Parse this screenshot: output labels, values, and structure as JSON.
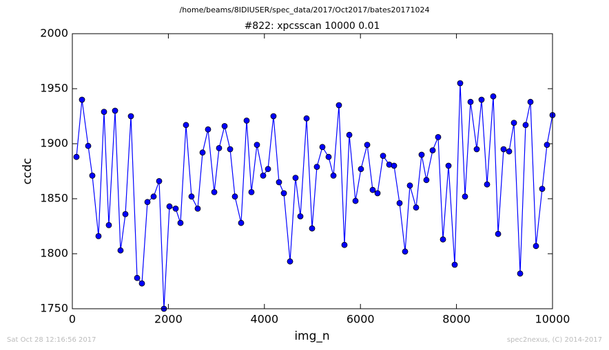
{
  "chart_data": {
    "type": "line",
    "suptitle": "/home/beams/8IDIUSER/spec_data/2017/Oct2017/bates20171024",
    "title": "#822: xpcsscan 10000 0.01",
    "xlabel": "img_n",
    "ylabel": "ccdc",
    "footer_left": "Sat Oct 28 12:16:56 2017",
    "footer_right": "spec2nexus, (C) 2014-2017",
    "xlim": [
      0,
      10000
    ],
    "xticks": [
      0,
      2000,
      4000,
      6000,
      8000,
      10000
    ],
    "ylim": [
      1750,
      2000
    ],
    "yticks": [
      1750,
      1800,
      1850,
      1900,
      1950,
      2000
    ],
    "grid": false,
    "x": [
      86,
      201,
      330,
      416,
      545,
      660,
      760,
      890,
      1004,
      1105,
      1220,
      1349,
      1449,
      1564,
      1693,
      1808,
      1908,
      2023,
      2152,
      2252,
      2367,
      2482,
      2611,
      2712,
      2826,
      2956,
      3056,
      3171,
      3286,
      3386,
      3515,
      3630,
      3730,
      3845,
      3974,
      4075,
      4189,
      4304,
      4405,
      4534,
      4648,
      4749,
      4878,
      4993,
      5093,
      5208,
      5337,
      5438,
      5552,
      5667,
      5768,
      5897,
      6011,
      6141,
      6255,
      6356,
      6471,
      6600,
      6700,
      6815,
      6930,
      7030,
      7159,
      7274,
      7374,
      7504,
      7618,
      7719,
      7834,
      7963,
      8077,
      8178,
      8293,
      8422,
      8522,
      8637,
      8766,
      8867,
      8981,
      9096,
      9197,
      9326,
      9440,
      9541,
      9656,
      9785,
      9885,
      10000
    ],
    "series": [
      {
        "color": "#0000ff",
        "marker_edge": "#000000",
        "values": [
          1888,
          1940,
          1898,
          1871,
          1816,
          1929,
          1826,
          1930,
          1803,
          1836,
          1925,
          1778,
          1773,
          1847,
          1852,
          1866,
          1750,
          1843,
          1841,
          1828,
          1917,
          1852,
          1841,
          1892,
          1913,
          1856,
          1896,
          1916,
          1895,
          1852,
          1828,
          1921,
          1856,
          1899,
          1871,
          1877,
          1925,
          1865,
          1855,
          1793,
          1869,
          1834,
          1923,
          1823,
          1879,
          1897,
          1888,
          1871,
          1935,
          1808,
          1908,
          1848,
          1877,
          1899,
          1858,
          1855,
          1889,
          1881,
          1880,
          1846,
          1802,
          1862,
          1842,
          1890,
          1867,
          1894,
          1906,
          1813,
          1880,
          1790,
          1955,
          1852,
          1938,
          1895,
          1940,
          1863,
          1943,
          1818,
          1895,
          1893,
          1919,
          1782,
          1917,
          1938,
          1807,
          1859,
          1899,
          1926
        ]
      }
    ]
  }
}
